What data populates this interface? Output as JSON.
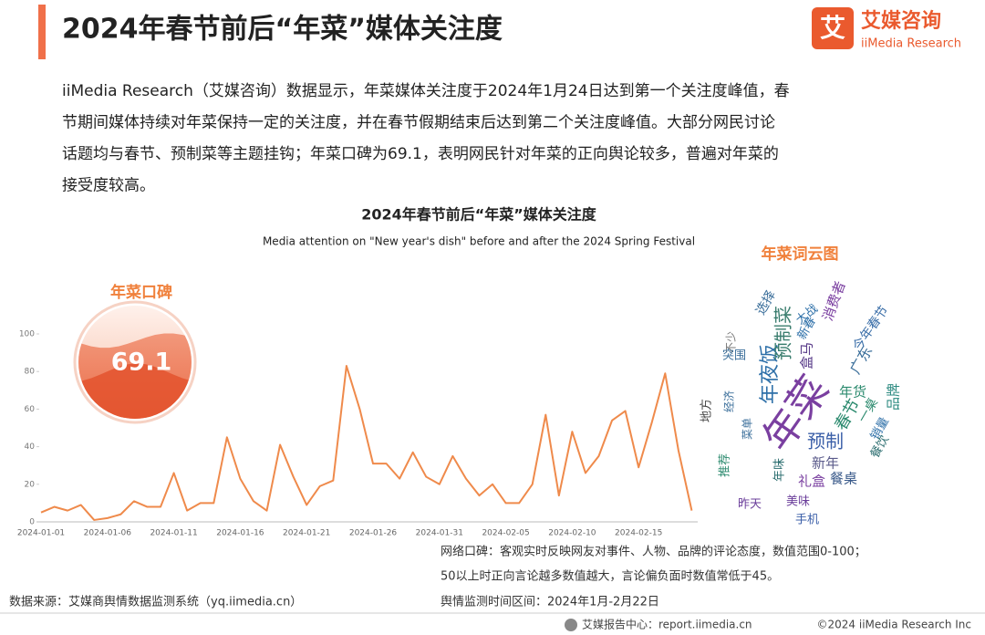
{
  "header": {
    "title": "2024年春节前后“年菜”媒体关注度",
    "brand": "艾媒咨询",
    "brand_en": "iiMedia Research"
  },
  "intro": [
    "iiMedia Research（艾媒咨询）数据显示，年菜媒体关注度于2024年1月24日达到第一个关注度峰值，春",
    "节期间媒体持续对年菜保持一定的关注度，并在春节假期结束后达到第二个关注度峰值。大部分网民讨论",
    "话题均与春节、预制菜等主题挂钩；年菜口碑为69.1，表明网民针对年菜的正向舆论较多，普遍对年菜的",
    "接受度较高。"
  ],
  "chart_data": {
    "type": "line",
    "title": "2024年春节前后“年菜”媒体关注度",
    "subtitle": "Media attention on \"New year's dish\" before and after the 2024 Spring Festival",
    "categories": [
      "2024-01-01",
      null,
      null,
      null,
      null,
      "2024-01-06",
      null,
      null,
      null,
      null,
      "2024-01-11",
      null,
      null,
      null,
      null,
      "2024-01-16",
      null,
      null,
      null,
      null,
      "2024-01-21",
      null,
      null,
      null,
      null,
      "2024-01-26",
      null,
      null,
      null,
      null,
      "2024-01-31",
      null,
      null,
      null,
      null,
      "2024-02-05",
      null,
      null,
      null,
      null,
      "2024-02-10",
      null,
      null,
      null,
      null,
      "2024-02-15",
      null,
      null,
      null,
      null
    ],
    "values": [
      5,
      8,
      6,
      9,
      1,
      2,
      4,
      11,
      8,
      8,
      26,
      6,
      10,
      10,
      45,
      23,
      11,
      6,
      41,
      24,
      9,
      19,
      22,
      83,
      60,
      31,
      31,
      23,
      37,
      24,
      20,
      35,
      23,
      14,
      20,
      10,
      10,
      20,
      57,
      14,
      48,
      26,
      35,
      54,
      59,
      29,
      53,
      79,
      38,
      6
    ],
    "color": "#ef8a4b",
    "ylim": [
      0,
      100
    ],
    "yticks": [
      0,
      20,
      40,
      60,
      80,
      100
    ],
    "grid": false
  },
  "sentiment": {
    "label": "年菜口碑",
    "value": 69.1
  },
  "wordcloud": {
    "title": "年菜词云图",
    "words": [
      "年菜",
      "年夜饭",
      "预制菜",
      "预制",
      "春节",
      "年货",
      "品牌",
      "新年",
      "礼盒",
      "餐桌",
      "美味",
      "手机",
      "昨天",
      "销量",
      "餐饮",
      "广东",
      "今年春节",
      "盒马",
      "新春",
      "大战",
      "选择",
      "消费者",
      "不少",
      "突围",
      "地方",
      "经济",
      "年味",
      "推荐",
      "菜单",
      "一桌"
    ]
  },
  "notes": [
    "网络口碑：客观实时反映网友对事件、人物、品牌的评论态度，数值范围0-100；",
    "50以上时正向言论越多数值越大，言论偏负面时数值常低于45。"
  ],
  "source": "数据来源：艾媒商舆情数据监测系统（yq.iimedia.cn）",
  "period": "舆情监测时间区间：2024年1月-2月22日",
  "footer": {
    "left": "艾媒报告中心：report.iimedia.cn",
    "right": "©2024  iiMedia Research  Inc"
  }
}
